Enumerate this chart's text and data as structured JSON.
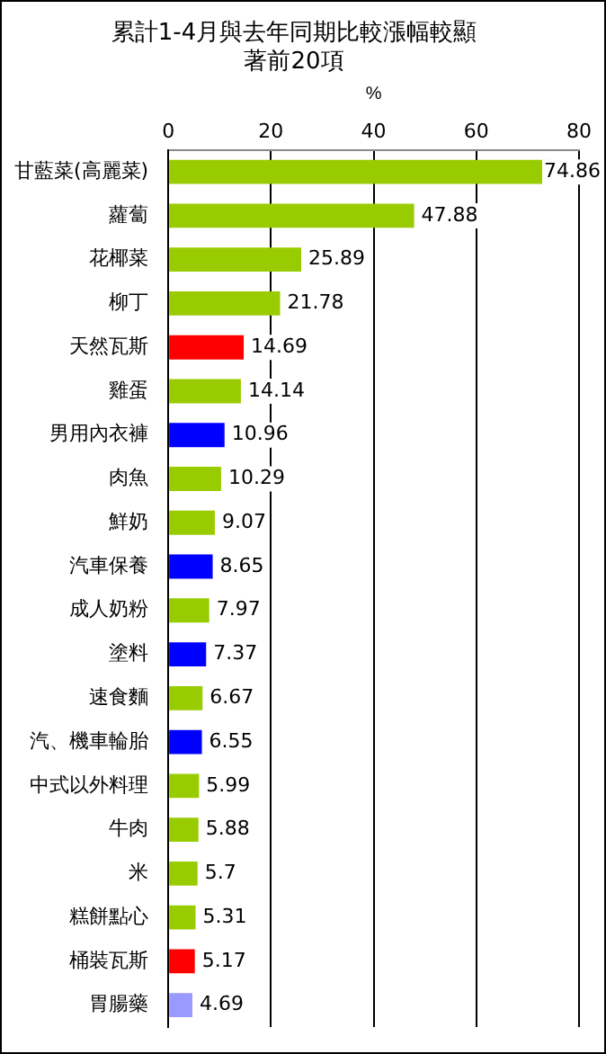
{
  "chart_data": {
    "type": "bar",
    "orientation": "horizontal",
    "title": [
      "累計1-4月與去年同期比較漲幅較顯",
      "著前20項"
    ],
    "xlabel": "%",
    "categories": [
      "甘藍菜(高麗菜)",
      "蘿蔔",
      "花椰菜",
      "柳丁",
      "天然瓦斯",
      "雞蛋",
      "男用內衣褲",
      "肉魚",
      "鮮奶",
      "汽車保養",
      "成人奶粉",
      "塗料",
      "速食麵",
      "汽、機車輪胎",
      "中式以外料理",
      "牛肉",
      "米",
      "糕餅點心",
      "桶裝瓦斯",
      "胃腸藥"
    ],
    "values": [
      74.86,
      47.88,
      25.89,
      21.78,
      14.69,
      14.14,
      10.96,
      10.29,
      9.07,
      8.65,
      7.97,
      7.37,
      6.67,
      6.55,
      5.99,
      5.88,
      5.7,
      5.31,
      5.17,
      4.69
    ],
    "colors": [
      "#99cc00",
      "#99cc00",
      "#99cc00",
      "#99cc00",
      "#ff0000",
      "#99cc00",
      "#0000ff",
      "#99cc00",
      "#99cc00",
      "#0000ff",
      "#99cc00",
      "#0000ff",
      "#99cc00",
      "#0000ff",
      "#99cc00",
      "#99cc00",
      "#99cc00",
      "#99cc00",
      "#ff0000",
      "#9999ff"
    ],
    "xlim": [
      0,
      80
    ],
    "xticks": [
      0,
      20,
      40,
      60,
      80
    ],
    "grid": "x",
    "data_labels": true,
    "legend": false
  }
}
